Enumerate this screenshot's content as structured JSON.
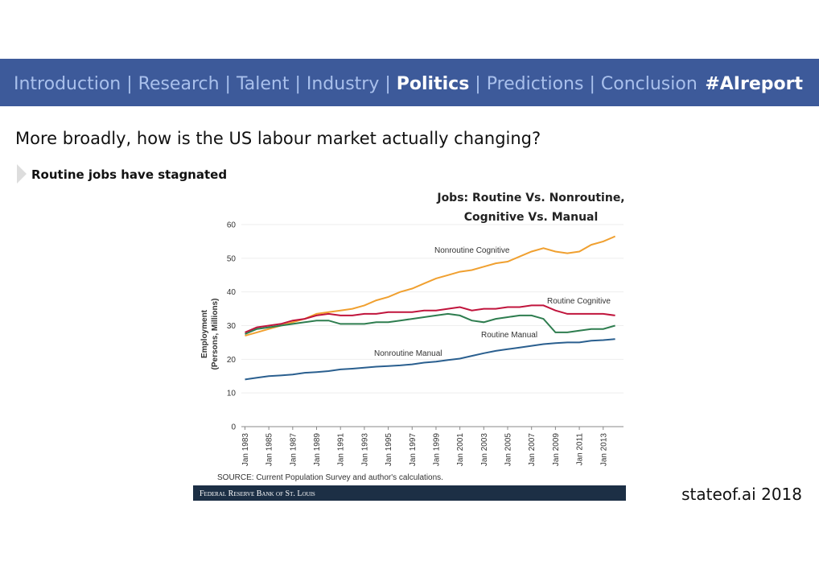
{
  "nav": {
    "items": [
      {
        "label": "Introduction",
        "active": false
      },
      {
        "label": "Research",
        "active": false
      },
      {
        "label": "Talent",
        "active": false
      },
      {
        "label": "Industry",
        "active": false
      },
      {
        "label": "Politics",
        "active": true
      },
      {
        "label": "Predictions",
        "active": false
      },
      {
        "label": "Conclusion",
        "active": false
      }
    ],
    "hashtag": "#AIreport"
  },
  "heading": "More broadly, how is the US labour market actually changing?",
  "subheading": "Routine jobs have stagnated",
  "footer": "stateof.ai 2018",
  "chart_data": {
    "type": "line",
    "title": [
      "Jobs: Routine Vs. Nonroutine,",
      "Cognitive Vs. Manual"
    ],
    "ylabel": [
      "Employment",
      "(Persons, Millions)"
    ],
    "source": "SOURCE: Current Population Survey and author's calculations.",
    "publisher": "Federal Reserve Bank of St. Louis",
    "x": [
      1983,
      1984,
      1985,
      1986,
      1987,
      1988,
      1989,
      1990,
      1991,
      1992,
      1993,
      1994,
      1995,
      1996,
      1997,
      1998,
      1999,
      2000,
      2001,
      2002,
      2003,
      2004,
      2005,
      2006,
      2007,
      2008,
      2009,
      2010,
      2011,
      2012,
      2013,
      2014
    ],
    "xlim": [
      1982.7,
      2014.7
    ],
    "xticks": [
      {
        "value": 1983,
        "label": "Jan 1983"
      },
      {
        "value": 1985,
        "label": "Jan 1985"
      },
      {
        "value": 1987,
        "label": "Jan 1987"
      },
      {
        "value": 1989,
        "label": "Jan 1989"
      },
      {
        "value": 1991,
        "label": "Jan 1991"
      },
      {
        "value": 1993,
        "label": "Jan 1993"
      },
      {
        "value": 1995,
        "label": "Jan 1995"
      },
      {
        "value": 1997,
        "label": "Jan 1997"
      },
      {
        "value": 1999,
        "label": "Jan 1999"
      },
      {
        "value": 2001,
        "label": "Jan 2001"
      },
      {
        "value": 2003,
        "label": "Jan 2003"
      },
      {
        "value": 2005,
        "label": "Jan 2005"
      },
      {
        "value": 2007,
        "label": "Jan 2007"
      },
      {
        "value": 2009,
        "label": "Jan 2009"
      },
      {
        "value": 2011,
        "label": "Jan 2011"
      },
      {
        "value": 2013,
        "label": "Jan 2013"
      }
    ],
    "ylim": [
      0,
      60
    ],
    "yticks": [
      0,
      10,
      20,
      30,
      40,
      50,
      60
    ],
    "series": [
      {
        "name": "Nonroutine Cognitive",
        "color": "#f0a030",
        "values": [
          27,
          28,
          29,
          30,
          31,
          32,
          33.5,
          34,
          34.5,
          35,
          36,
          37.5,
          38.5,
          40,
          41,
          42.5,
          44,
          45,
          46,
          46.5,
          47.5,
          48.5,
          49,
          50.5,
          52,
          53,
          52,
          51.5,
          52,
          54,
          55,
          56.5
        ]
      },
      {
        "name": "Routine Cognitive",
        "color": "#c0143c",
        "values": [
          28,
          29.5,
          30,
          30.5,
          31.5,
          32,
          33,
          33.5,
          33,
          33,
          33.5,
          33.5,
          34,
          34,
          34,
          34.5,
          34.5,
          35,
          35.5,
          34.5,
          35,
          35,
          35.5,
          35.5,
          36,
          36,
          34.5,
          33.5,
          33.5,
          33.5,
          33.5,
          33
        ]
      },
      {
        "name": "Routine Manual",
        "color": "#2e7d4f",
        "values": [
          27.5,
          29,
          29.5,
          30,
          30.5,
          31,
          31.5,
          31.5,
          30.5,
          30.5,
          30.5,
          31,
          31,
          31.5,
          32,
          32.5,
          33,
          33.5,
          33,
          31.5,
          31,
          32,
          32.5,
          33,
          33,
          32,
          28,
          28,
          28.5,
          29,
          29,
          30
        ]
      },
      {
        "name": "Nonroutine Manual",
        "color": "#2a5f8f",
        "values": [
          14,
          14.5,
          15,
          15.2,
          15.5,
          16,
          16.2,
          16.5,
          17,
          17.2,
          17.5,
          17.8,
          18,
          18.2,
          18.5,
          19,
          19.3,
          19.8,
          20.2,
          21,
          21.8,
          22.5,
          23,
          23.5,
          24,
          24.5,
          24.8,
          25,
          25,
          25.5,
          25.7,
          26
        ]
      }
    ]
  }
}
